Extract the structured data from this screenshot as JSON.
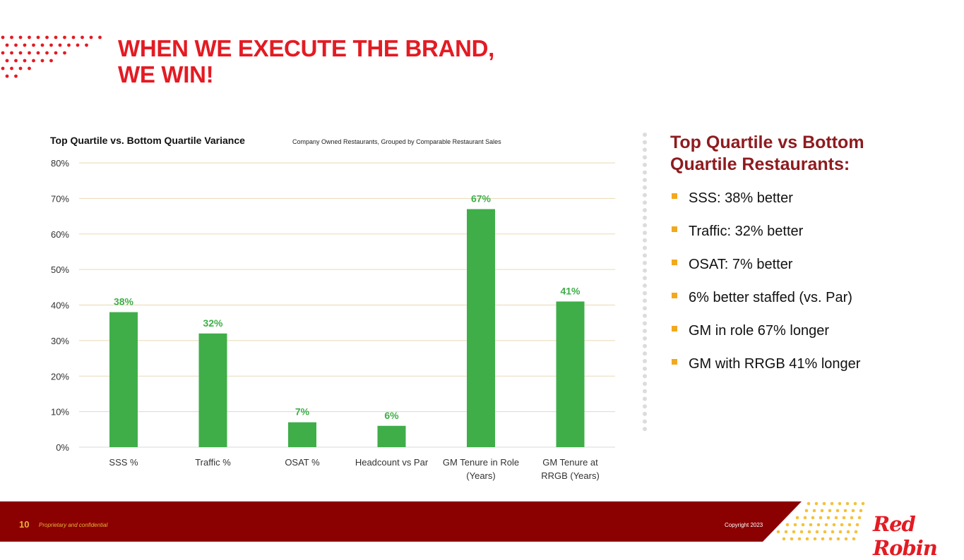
{
  "title": {
    "line1": "WHEN WE EXECUTE THE BRAND,",
    "line2": "WE WIN!"
  },
  "colors": {
    "accent": "#e31b23",
    "bar": "#3fae49",
    "footer": "#8b0000",
    "bullet": "#f3a81d",
    "side_title": "#8e1b1f"
  },
  "chart_data": {
    "type": "bar",
    "title": "Top Quartile vs. Bottom Quartile Variance",
    "subtitle": "Company Owned Restaurants, Grouped by Comparable Restaurant Sales",
    "categories": [
      [
        "SSS %"
      ],
      [
        "Traffic %"
      ],
      [
        "OSAT %"
      ],
      [
        "Headcount vs Par"
      ],
      [
        "GM Tenure in Role",
        "(Years)"
      ],
      [
        "GM Tenure at",
        "RRGB (Years)"
      ]
    ],
    "values": [
      38,
      32,
      7,
      6,
      67,
      41
    ],
    "data_labels": [
      "38%",
      "32%",
      "7%",
      "6%",
      "67%",
      "41%"
    ],
    "ylim": [
      0,
      80
    ],
    "yticks": [
      "0%",
      "10%",
      "20%",
      "30%",
      "40%",
      "50%",
      "60%",
      "70%",
      "80%"
    ],
    "xlabel": "",
    "ylabel": "",
    "grid": true
  },
  "side": {
    "title_line1": "Top Quartile vs Bottom",
    "title_line2": "Quartile Restaurants:",
    "items": [
      "SSS: 38% better",
      "Traffic: 32% better",
      "OSAT: 7% better",
      "6% better staffed (vs. Par)",
      "GM in role 67% longer",
      "GM with RRGB 41% longer"
    ]
  },
  "footer": {
    "page_number": "10",
    "confidential": "Proprietary and confidential",
    "copyright": "Copyright 2023",
    "logo_text": "Red Robin"
  }
}
